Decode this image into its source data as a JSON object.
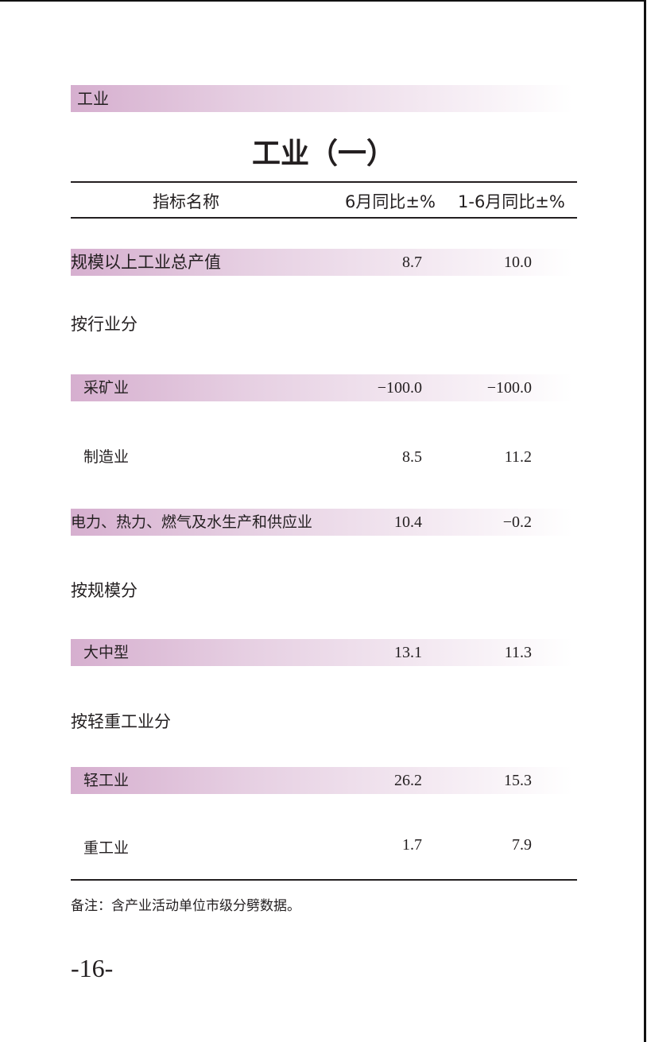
{
  "section": "工业",
  "title": "工业（一）",
  "table": {
    "headers": [
      "指标名称",
      "6月同比±%",
      "1-6月同比±%"
    ],
    "rows": [
      {
        "label": "规模以上工业总产值",
        "june": "8.7",
        "ytd": "10.0",
        "highlight": true
      },
      {
        "label": "按行业分"
      },
      {
        "label": "采矿业",
        "june": "−100.0",
        "ytd": "−100.0",
        "highlight": true
      },
      {
        "label": "制造业",
        "june": "8.5",
        "ytd": "11.2"
      },
      {
        "label": "电力、热力、燃气及水生产和供应业",
        "june": "10.4",
        "ytd": "−0.2",
        "highlight": true
      },
      {
        "label": "按规模分"
      },
      {
        "label": "大中型",
        "june": "13.1",
        "ytd": "11.3",
        "highlight": true
      },
      {
        "label": "按轻重工业分"
      },
      {
        "label": "轻工业",
        "june": "26.2",
        "ytd": "15.3",
        "highlight": true
      },
      {
        "label": "重工业",
        "june": "1.7",
        "ytd": "7.9"
      }
    ]
  },
  "note": "备注：含产业活动单位市级分劈数据。",
  "page_number": "-16-",
  "colors": {
    "band_start": "#d6afcf",
    "band_end": "#ffffff",
    "text": "#231f20"
  }
}
